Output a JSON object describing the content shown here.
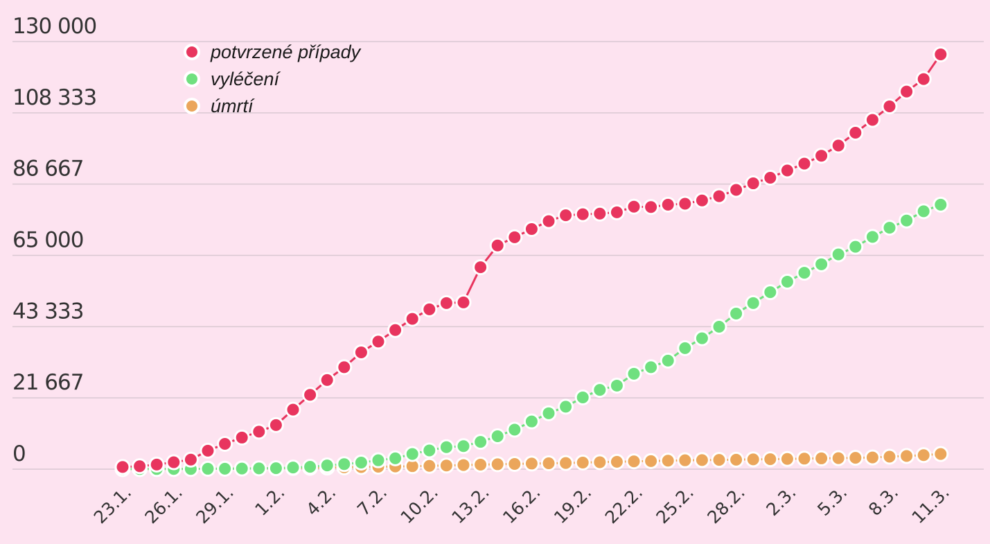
{
  "chart_data": {
    "type": "line",
    "title": "",
    "xlabel": "",
    "ylabel": "",
    "ylim": [
      0,
      130000
    ],
    "yticks": [
      "130 000",
      "108 333",
      "86 667",
      "65 000",
      "43 333",
      "21 667",
      "0"
    ],
    "ytick_values": [
      130000,
      108333,
      86667,
      65000,
      43333,
      21667,
      0
    ],
    "xtick_labels": [
      "23.1.",
      "26.1.",
      "29.1.",
      "1.2.",
      "4.2.",
      "7.2.",
      "10.2.",
      "13.2.",
      "16.2.",
      "19.2.",
      "22.2.",
      "25.2.",
      "28.2.",
      "2.3.",
      "5.3.",
      "8.3.",
      "11.3."
    ],
    "x": [
      "23.1.",
      "24.1.",
      "25.1.",
      "26.1.",
      "27.1.",
      "28.1.",
      "29.1.",
      "30.1.",
      "31.1.",
      "1.2.",
      "2.2.",
      "3.2.",
      "4.2.",
      "5.2.",
      "6.2.",
      "7.2.",
      "8.2.",
      "9.2.",
      "10.2.",
      "11.2.",
      "12.2.",
      "13.2.",
      "14.2.",
      "15.2.",
      "16.2.",
      "17.2.",
      "18.2.",
      "19.2.",
      "20.2.",
      "21.2.",
      "22.2.",
      "23.2.",
      "24.2.",
      "25.2.",
      "26.2.",
      "27.2.",
      "28.2.",
      "29.2.",
      "1.3.",
      "2.3.",
      "3.3.",
      "4.3.",
      "5.3.",
      "6.3.",
      "7.3.",
      "8.3.",
      "9.3.",
      "10.3.",
      "11.3."
    ],
    "grid": true,
    "legend_position": "top-left",
    "series": [
      {
        "name": "potvrzené případy",
        "color": "#e8355e",
        "values": [
          650,
          900,
          1400,
          2100,
          2900,
          5600,
          7700,
          9600,
          11400,
          13400,
          18100,
          22600,
          27100,
          31000,
          35500,
          38800,
          42300,
          45700,
          48600,
          50500,
          50700,
          61400,
          68000,
          70500,
          73000,
          75400,
          77200,
          77500,
          77700,
          78100,
          79800,
          79700,
          80400,
          80700,
          81700,
          83000,
          84900,
          86900,
          88600,
          90800,
          92900,
          95300,
          98400,
          102300,
          106200,
          110300,
          114800,
          118600,
          126100
        ]
      },
      {
        "name": "vyléčení",
        "color": "#6fe07f",
        "values": [
          30,
          40,
          40,
          60,
          60,
          120,
          130,
          180,
          240,
          300,
          500,
          720,
          1140,
          1540,
          2000,
          2700,
          3300,
          4600,
          5700,
          6700,
          7000,
          8300,
          10000,
          12000,
          14500,
          17000,
          19000,
          21800,
          24100,
          25400,
          29000,
          31000,
          33000,
          36800,
          39800,
          43300,
          47300,
          50500,
          53800,
          57000,
          59700,
          62300,
          65300,
          67600,
          70600,
          73400,
          75600,
          78400,
          80400
        ]
      },
      {
        "name": "úmrtí",
        "color": "#eba65b",
        "values": [
          20,
          30,
          50,
          60,
          90,
          130,
          170,
          210,
          260,
          300,
          360,
          430,
          490,
          560,
          640,
          730,
          810,
          910,
          1010,
          1110,
          1250,
          1370,
          1490,
          1590,
          1700,
          1780,
          1870,
          2010,
          2120,
          2240,
          2360,
          2460,
          2580,
          2700,
          2760,
          2810,
          2880,
          2970,
          3040,
          3110,
          3200,
          3280,
          3350,
          3460,
          3560,
          3800,
          4000,
          4260,
          4610
        ]
      }
    ]
  }
}
